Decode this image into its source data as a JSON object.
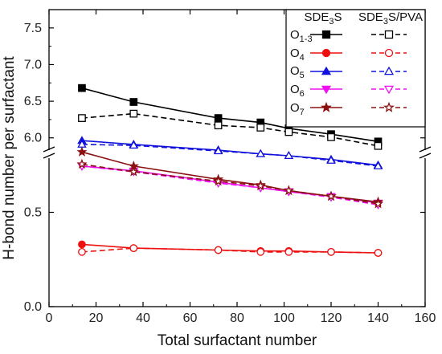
{
  "chart_data": {
    "type": "line",
    "xlabel": "Total surfactant number",
    "ylabel": "H-bond number per surfactant",
    "xlim": [
      0,
      160
    ],
    "x_ticks": [
      "0",
      "20",
      "40",
      "60",
      "80",
      "100",
      "120",
      "140",
      "160"
    ],
    "y_axis_broken": true,
    "y_upper_ticks": [
      "6.0",
      "6.5",
      "7.0",
      "7.5"
    ],
    "y_lower_ticks": [
      "0.0",
      "0.5"
    ],
    "y_lower_range": [
      0.0,
      0.8
    ],
    "y_upper_range": [
      5.8,
      7.75
    ],
    "grid": false,
    "legend_placement": "top-right",
    "legend": {
      "col_headers": {
        "a_pre": "SDE",
        "a_sub": "3",
        "a_post": "S",
        "b_pre": "SDE",
        "b_sub": "3",
        "b_post": "S/PVA"
      },
      "rows": [
        {
          "pre": "O",
          "sub": "1-3"
        },
        {
          "pre": "O",
          "sub": "4"
        },
        {
          "pre": "O",
          "sub": "5"
        },
        {
          "pre": "O",
          "sub": "6"
        },
        {
          "pre": "O",
          "sub": "7"
        }
      ]
    },
    "series": [
      {
        "group": "O1-3",
        "system": "SDE3S",
        "color": "#000000",
        "marker": "square",
        "dashed": false,
        "x": [
          14,
          36,
          72,
          90,
          102,
          120,
          140
        ],
        "y": [
          6.68,
          6.49,
          6.27,
          6.21,
          6.13,
          6.05,
          5.95
        ]
      },
      {
        "group": "O1-3",
        "system": "SDE3S/PVA",
        "color": "#000000",
        "marker": "square",
        "dashed": true,
        "x": [
          14,
          36,
          72,
          90,
          102,
          120,
          140
        ],
        "y": [
          6.27,
          6.33,
          6.17,
          6.14,
          6.08,
          6.01,
          5.89
        ]
      },
      {
        "group": "O4",
        "system": "SDE3S",
        "color": "#ee1111",
        "marker": "circle",
        "dashed": false,
        "x": [
          14,
          36,
          72,
          90,
          102,
          120,
          140
        ],
        "y": [
          0.33,
          0.31,
          0.3,
          0.295,
          0.295,
          0.29,
          0.285
        ]
      },
      {
        "group": "O4",
        "system": "SDE3S/PVA",
        "color": "#ee1111",
        "marker": "circle",
        "dashed": true,
        "x": [
          14,
          36,
          72,
          90,
          102,
          120,
          140
        ],
        "y": [
          0.29,
          0.31,
          0.3,
          0.29,
          0.29,
          0.29,
          0.285
        ]
      },
      {
        "group": "O5",
        "system": "SDE3S",
        "color": "#1111dd",
        "marker": "triangle-up",
        "dashed": false,
        "x": [
          14,
          36,
          72,
          90,
          102,
          120,
          140
        ],
        "y": [
          0.88,
          0.86,
          0.83,
          0.81,
          0.8,
          0.78,
          0.75
        ]
      },
      {
        "group": "O5",
        "system": "SDE3S/PVA",
        "color": "#1111dd",
        "marker": "triangle-up",
        "dashed": true,
        "x": [
          14,
          36,
          72,
          90,
          102,
          120,
          140
        ],
        "y": [
          0.86,
          0.855,
          0.825,
          0.81,
          0.8,
          0.775,
          0.745
        ]
      },
      {
        "group": "O6",
        "system": "SDE3S",
        "color": "#ee11ee",
        "marker": "triangle-down",
        "dashed": false,
        "x": [
          14,
          36,
          72,
          90,
          102,
          120,
          140
        ],
        "y": [
          0.745,
          0.72,
          0.66,
          0.63,
          0.61,
          0.585,
          0.55
        ]
      },
      {
        "group": "O6",
        "system": "SDE3S/PVA",
        "color": "#ee11ee",
        "marker": "triangle-down",
        "dashed": true,
        "x": [
          14,
          36,
          72,
          90,
          102,
          120,
          140
        ],
        "y": [
          0.745,
          0.715,
          0.655,
          0.63,
          0.61,
          0.58,
          0.54
        ]
      },
      {
        "group": "O7",
        "system": "SDE3S",
        "color": "#8b1010",
        "marker": "star",
        "dashed": false,
        "x": [
          14,
          36,
          72,
          90,
          102,
          120,
          140
        ],
        "y": [
          0.82,
          0.745,
          0.675,
          0.645,
          0.615,
          0.585,
          0.555
        ]
      },
      {
        "group": "O7",
        "system": "SDE3S/PVA",
        "color": "#8b1010",
        "marker": "star",
        "dashed": true,
        "x": [
          14,
          36,
          72,
          90,
          102,
          120,
          140
        ],
        "y": [
          0.755,
          0.715,
          0.665,
          0.64,
          0.615,
          0.585,
          0.545
        ]
      }
    ]
  }
}
